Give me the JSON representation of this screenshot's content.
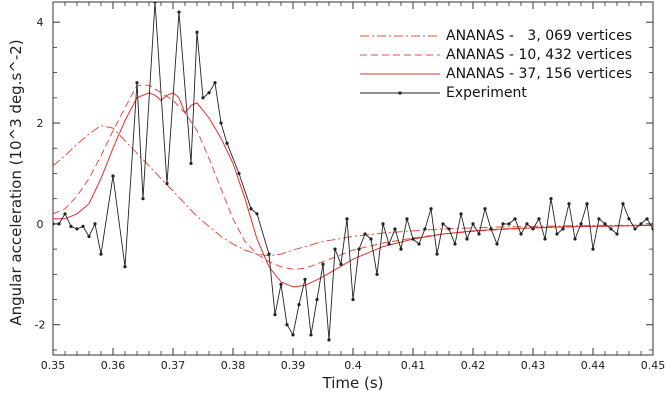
{
  "chart_data": {
    "type": "line",
    "xlabel": "Time (s)",
    "ylabel": "Angular acceleration (10^3 deg.s^-2)",
    "xlim": [
      0.35,
      0.45
    ],
    "ylim": [
      -2.6,
      4.4
    ],
    "x_ticks": [
      "0.35",
      "0.36",
      "0.37",
      "0.38",
      "0.39",
      "0.4",
      "0.41",
      "0.42",
      "0.43",
      "0.44",
      "0.45"
    ],
    "y_ticks": [
      "4",
      "2",
      "0",
      "-2"
    ],
    "legend_position": "top-right",
    "series": [
      {
        "name": "ANANAS -   3, 069 vertices",
        "color": "#e05040",
        "style": "dashdot",
        "x": [
          0.35,
          0.352,
          0.354,
          0.356,
          0.358,
          0.36,
          0.362,
          0.364,
          0.366,
          0.368,
          0.37,
          0.372,
          0.374,
          0.376,
          0.378,
          0.38,
          0.382,
          0.384,
          0.386,
          0.388,
          0.39,
          0.395,
          0.4,
          0.405,
          0.41,
          0.415,
          0.42,
          0.425,
          0.43,
          0.435,
          0.44,
          0.445,
          0.45
        ],
        "y": [
          1.15,
          1.35,
          1.58,
          1.78,
          1.95,
          1.9,
          1.65,
          1.4,
          1.15,
          0.9,
          0.65,
          0.4,
          0.15,
          -0.05,
          -0.25,
          -0.4,
          -0.52,
          -0.6,
          -0.63,
          -0.6,
          -0.52,
          -0.35,
          -0.25,
          -0.18,
          -0.14,
          -0.1,
          -0.08,
          -0.06,
          -0.05,
          -0.04,
          -0.03,
          -0.03,
          -0.02
        ]
      },
      {
        "name": "ANANAS - 10, 432 vertices",
        "color": "#e05040",
        "style": "dashed",
        "x": [
          0.35,
          0.352,
          0.354,
          0.356,
          0.358,
          0.36,
          0.362,
          0.364,
          0.366,
          0.368,
          0.37,
          0.372,
          0.374,
          0.376,
          0.378,
          0.38,
          0.382,
          0.384,
          0.386,
          0.388,
          0.39,
          0.392,
          0.395,
          0.4,
          0.405,
          0.41,
          0.415,
          0.42,
          0.425,
          0.43,
          0.435,
          0.44,
          0.445,
          0.45
        ],
        "y": [
          0.2,
          0.3,
          0.55,
          0.9,
          1.35,
          1.85,
          2.3,
          2.75,
          2.75,
          2.6,
          2.45,
          2.2,
          1.85,
          1.3,
          0.7,
          0.1,
          -0.35,
          -0.6,
          -0.75,
          -0.85,
          -0.9,
          -0.88,
          -0.75,
          -0.52,
          -0.38,
          -0.28,
          -0.2,
          -0.15,
          -0.11,
          -0.08,
          -0.06,
          -0.05,
          -0.04,
          -0.03
        ]
      },
      {
        "name": "ANANAS - 37, 156 vertices",
        "color": "#e03030",
        "style": "solid",
        "x": [
          0.35,
          0.352,
          0.354,
          0.356,
          0.358,
          0.36,
          0.362,
          0.364,
          0.366,
          0.367,
          0.368,
          0.369,
          0.37,
          0.371,
          0.372,
          0.373,
          0.374,
          0.376,
          0.378,
          0.38,
          0.382,
          0.384,
          0.386,
          0.388,
          0.39,
          0.392,
          0.395,
          0.4,
          0.405,
          0.41,
          0.415,
          0.42,
          0.425,
          0.43,
          0.435,
          0.44,
          0.445,
          0.45
        ],
        "y": [
          0.1,
          0.1,
          0.2,
          0.4,
          0.9,
          1.5,
          2.05,
          2.5,
          2.6,
          2.55,
          2.45,
          2.55,
          2.6,
          2.5,
          2.2,
          2.35,
          2.4,
          2.1,
          1.7,
          1.2,
          0.5,
          -0.3,
          -0.85,
          -1.15,
          -1.25,
          -1.22,
          -1.05,
          -0.7,
          -0.45,
          -0.3,
          -0.2,
          -0.14,
          -0.1,
          -0.08,
          -0.06,
          -0.05,
          -0.04,
          -0.03
        ]
      },
      {
        "name": "Experiment",
        "color": "#222222",
        "style": "solid-markers",
        "x": [
          0.35,
          0.351,
          0.352,
          0.353,
          0.354,
          0.355,
          0.356,
          0.357,
          0.358,
          0.36,
          0.362,
          0.364,
          0.365,
          0.367,
          0.369,
          0.371,
          0.373,
          0.374,
          0.375,
          0.376,
          0.377,
          0.378,
          0.379,
          0.381,
          0.383,
          0.384,
          0.386,
          0.387,
          0.388,
          0.389,
          0.39,
          0.391,
          0.392,
          0.393,
          0.394,
          0.395,
          0.396,
          0.397,
          0.398,
          0.399,
          0.4,
          0.401,
          0.402,
          0.403,
          0.404,
          0.405,
          0.406,
          0.407,
          0.408,
          0.409,
          0.41,
          0.411,
          0.412,
          0.413,
          0.414,
          0.415,
          0.416,
          0.417,
          0.418,
          0.419,
          0.42,
          0.421,
          0.422,
          0.423,
          0.424,
          0.425,
          0.426,
          0.427,
          0.428,
          0.429,
          0.43,
          0.431,
          0.432,
          0.433,
          0.434,
          0.435,
          0.436,
          0.437,
          0.438,
          0.439,
          0.44,
          0.441,
          0.442,
          0.443,
          0.444,
          0.445,
          0.446,
          0.447,
          0.448,
          0.449,
          0.45
        ],
        "y": [
          0,
          0,
          0.2,
          -0.05,
          -0.1,
          -0.05,
          -0.25,
          0,
          -0.6,
          0.95,
          -0.85,
          2.8,
          0.5,
          4.4,
          0.8,
          4.2,
          1.2,
          3.8,
          2.5,
          2.6,
          2.8,
          2,
          1.6,
          1,
          0.3,
          0.2,
          -0.6,
          -1.8,
          -1.2,
          -2,
          -2.2,
          -1.6,
          -1.1,
          -2.2,
          -1.5,
          -0.8,
          -2.3,
          -0.5,
          -0.8,
          0.1,
          -1.5,
          -0.5,
          -0.2,
          -0.3,
          -1,
          0,
          -0.4,
          -0.1,
          -0.5,
          0.1,
          -0.3,
          -0.4,
          -0.1,
          0.3,
          -0.6,
          0,
          -0.1,
          -0.4,
          0.2,
          -0.3,
          0,
          -0.2,
          0.3,
          -0.1,
          -0.4,
          0,
          0,
          0.1,
          -0.2,
          0,
          -0.1,
          0.1,
          -0.3,
          0.5,
          -0.2,
          -0.1,
          0.4,
          -0.3,
          0,
          0.4,
          -0.5,
          0.1,
          0,
          -0.1,
          -0.2,
          0.4,
          0.1,
          -0.1,
          0,
          0.1,
          -0.1
        ]
      }
    ]
  }
}
